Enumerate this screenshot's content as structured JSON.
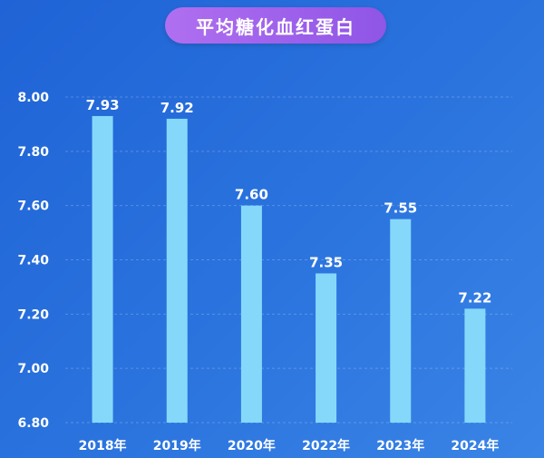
{
  "chart_data": {
    "type": "bar",
    "title": "平均糖化血红蛋白",
    "categories": [
      "2018年",
      "2019年",
      "2020年",
      "2022年",
      "2023年",
      "2024年"
    ],
    "values": [
      7.93,
      7.92,
      7.6,
      7.35,
      7.55,
      7.22
    ],
    "value_labels": [
      "7.93",
      "7.92",
      "7.60",
      "7.35",
      "7.55",
      "7.22"
    ],
    "ylim": [
      6.8,
      8.0
    ],
    "yticks": [
      "8.00",
      "7.80",
      "7.60",
      "7.40",
      "7.20",
      "7.00",
      "6.80"
    ],
    "grid": true,
    "bar_color": "#86d8fb",
    "title_colors": [
      "#b06ff0",
      "#8f55e6"
    ]
  }
}
